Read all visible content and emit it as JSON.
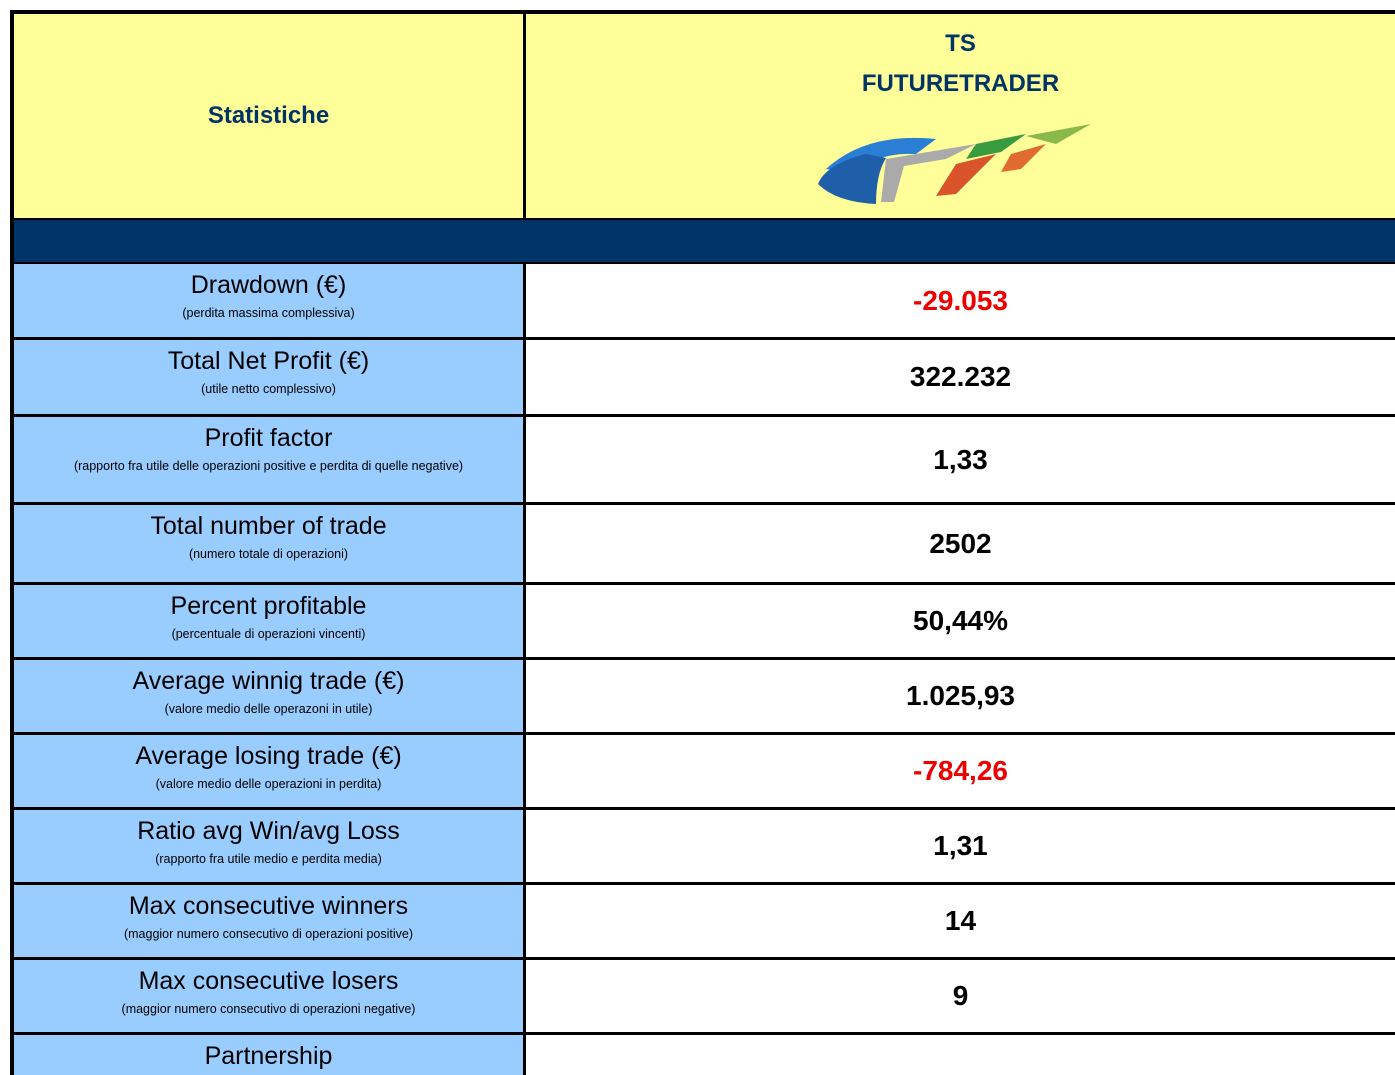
{
  "header": {
    "title": "Statistiche",
    "brand": [
      "TS",
      "FUTURETRADER"
    ]
  },
  "rows": [
    {
      "label": "Drawdown (€)",
      "note": "(perdita massima complessiva)",
      "value": "-29.053"
    },
    {
      "label": "Total Net Profit (€)",
      "note": "(utile netto complessivo)",
      "value": "322.232"
    },
    {
      "label": "Profit factor",
      "note": "(rapporto fra utile delle operazioni positive e perdita di quelle negative)",
      "value": "1,33"
    },
    {
      "label": "Total number of trade",
      "note": "(numero totale di operazioni)",
      "value": "2502"
    },
    {
      "label": "Percent profitable",
      "note": "(percentuale di operazioni vincenti)",
      "value": "50,44%"
    },
    {
      "label": "Average winnig trade (€)",
      "note": "(valore medio delle operazoni in utile)",
      "value": "1.025,93"
    },
    {
      "label": "Average losing trade (€)",
      "note": "(valore medio delle operazioni in perdita)",
      "value": "-784,26"
    },
    {
      "label": "Ratio avg Win/avg Loss",
      "note": "(rapporto fra utile medio e perdita media)",
      "value": "1,31"
    },
    {
      "label": "Max consecutive winners",
      "note": "(maggior numero consecutivo di operazioni positive)",
      "value": "14"
    },
    {
      "label": "Max consecutive losers",
      "note": "(maggior numero consecutivo di operazioni negative)",
      "value": "9"
    },
    {
      "label": "Partnership"
    }
  ]
}
